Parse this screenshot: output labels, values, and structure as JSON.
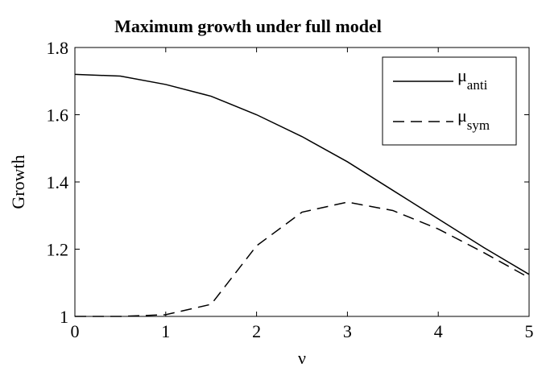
{
  "chart_data": {
    "type": "line",
    "title": "Maximum growth under full model",
    "x_label": "ν",
    "y_label": "Growth",
    "x": [
      0,
      0.5,
      1,
      1.5,
      2,
      2.5,
      3,
      3.5,
      4,
      4.5,
      5
    ],
    "series": [
      {
        "name": "μanti",
        "color": "#000000",
        "dash": "solid",
        "values": [
          1.72,
          1.715,
          1.69,
          1.655,
          1.6,
          1.535,
          1.46,
          1.375,
          1.29,
          1.205,
          1.125
        ]
      },
      {
        "name": "μsym",
        "color": "#000000",
        "dash": "dashed",
        "values": [
          1.0,
          1.0,
          1.005,
          1.036,
          1.21,
          1.31,
          1.34,
          1.315,
          1.26,
          1.19,
          1.115
        ]
      }
    ],
    "xlim": [
      0,
      5
    ],
    "xticks": [
      0,
      1,
      2,
      3,
      4,
      5
    ],
    "ylim": [
      1,
      1.8
    ],
    "yticks": [
      1,
      1.2,
      1.4,
      1.6,
      1.8
    ],
    "grid": false,
    "legend": "upper right"
  }
}
